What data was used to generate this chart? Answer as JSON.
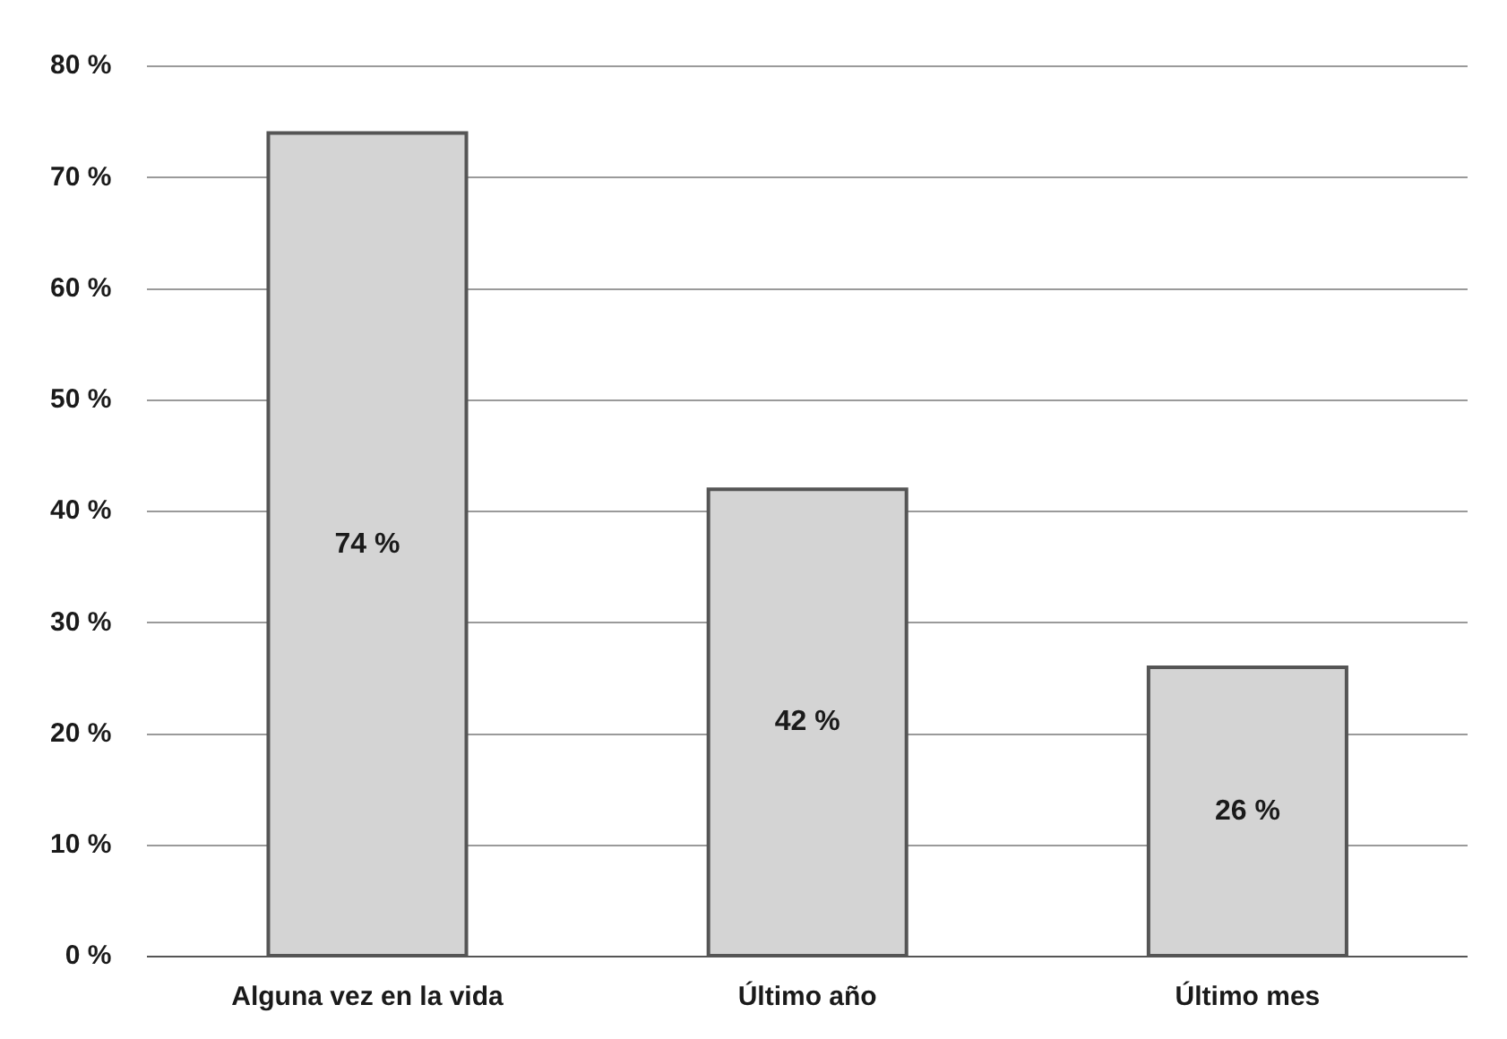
{
  "chart_data": {
    "type": "bar",
    "categories": [
      "Alguna vez en la vida",
      "Último año",
      "Último mes"
    ],
    "values": [
      74,
      42,
      26
    ],
    "value_labels": [
      "74 %",
      "42 %",
      "26 %"
    ],
    "color": "#d4d4d4",
    "ylim": [
      0,
      80
    ],
    "yticks": [
      {
        "value": 0,
        "label": "0 %"
      },
      {
        "value": 10,
        "label": "10 %"
      },
      {
        "value": 20,
        "label": "20 %"
      },
      {
        "value": 30,
        "label": "30 %"
      },
      {
        "value": 40,
        "label": "40 %"
      },
      {
        "value": 50,
        "label": "50 %"
      },
      {
        "value": 60,
        "label": "60 %"
      },
      {
        "value": 70,
        "label": "70 %"
      },
      {
        "value": 80,
        "label": "80 %"
      }
    ],
    "grid": "y",
    "legend": false
  }
}
